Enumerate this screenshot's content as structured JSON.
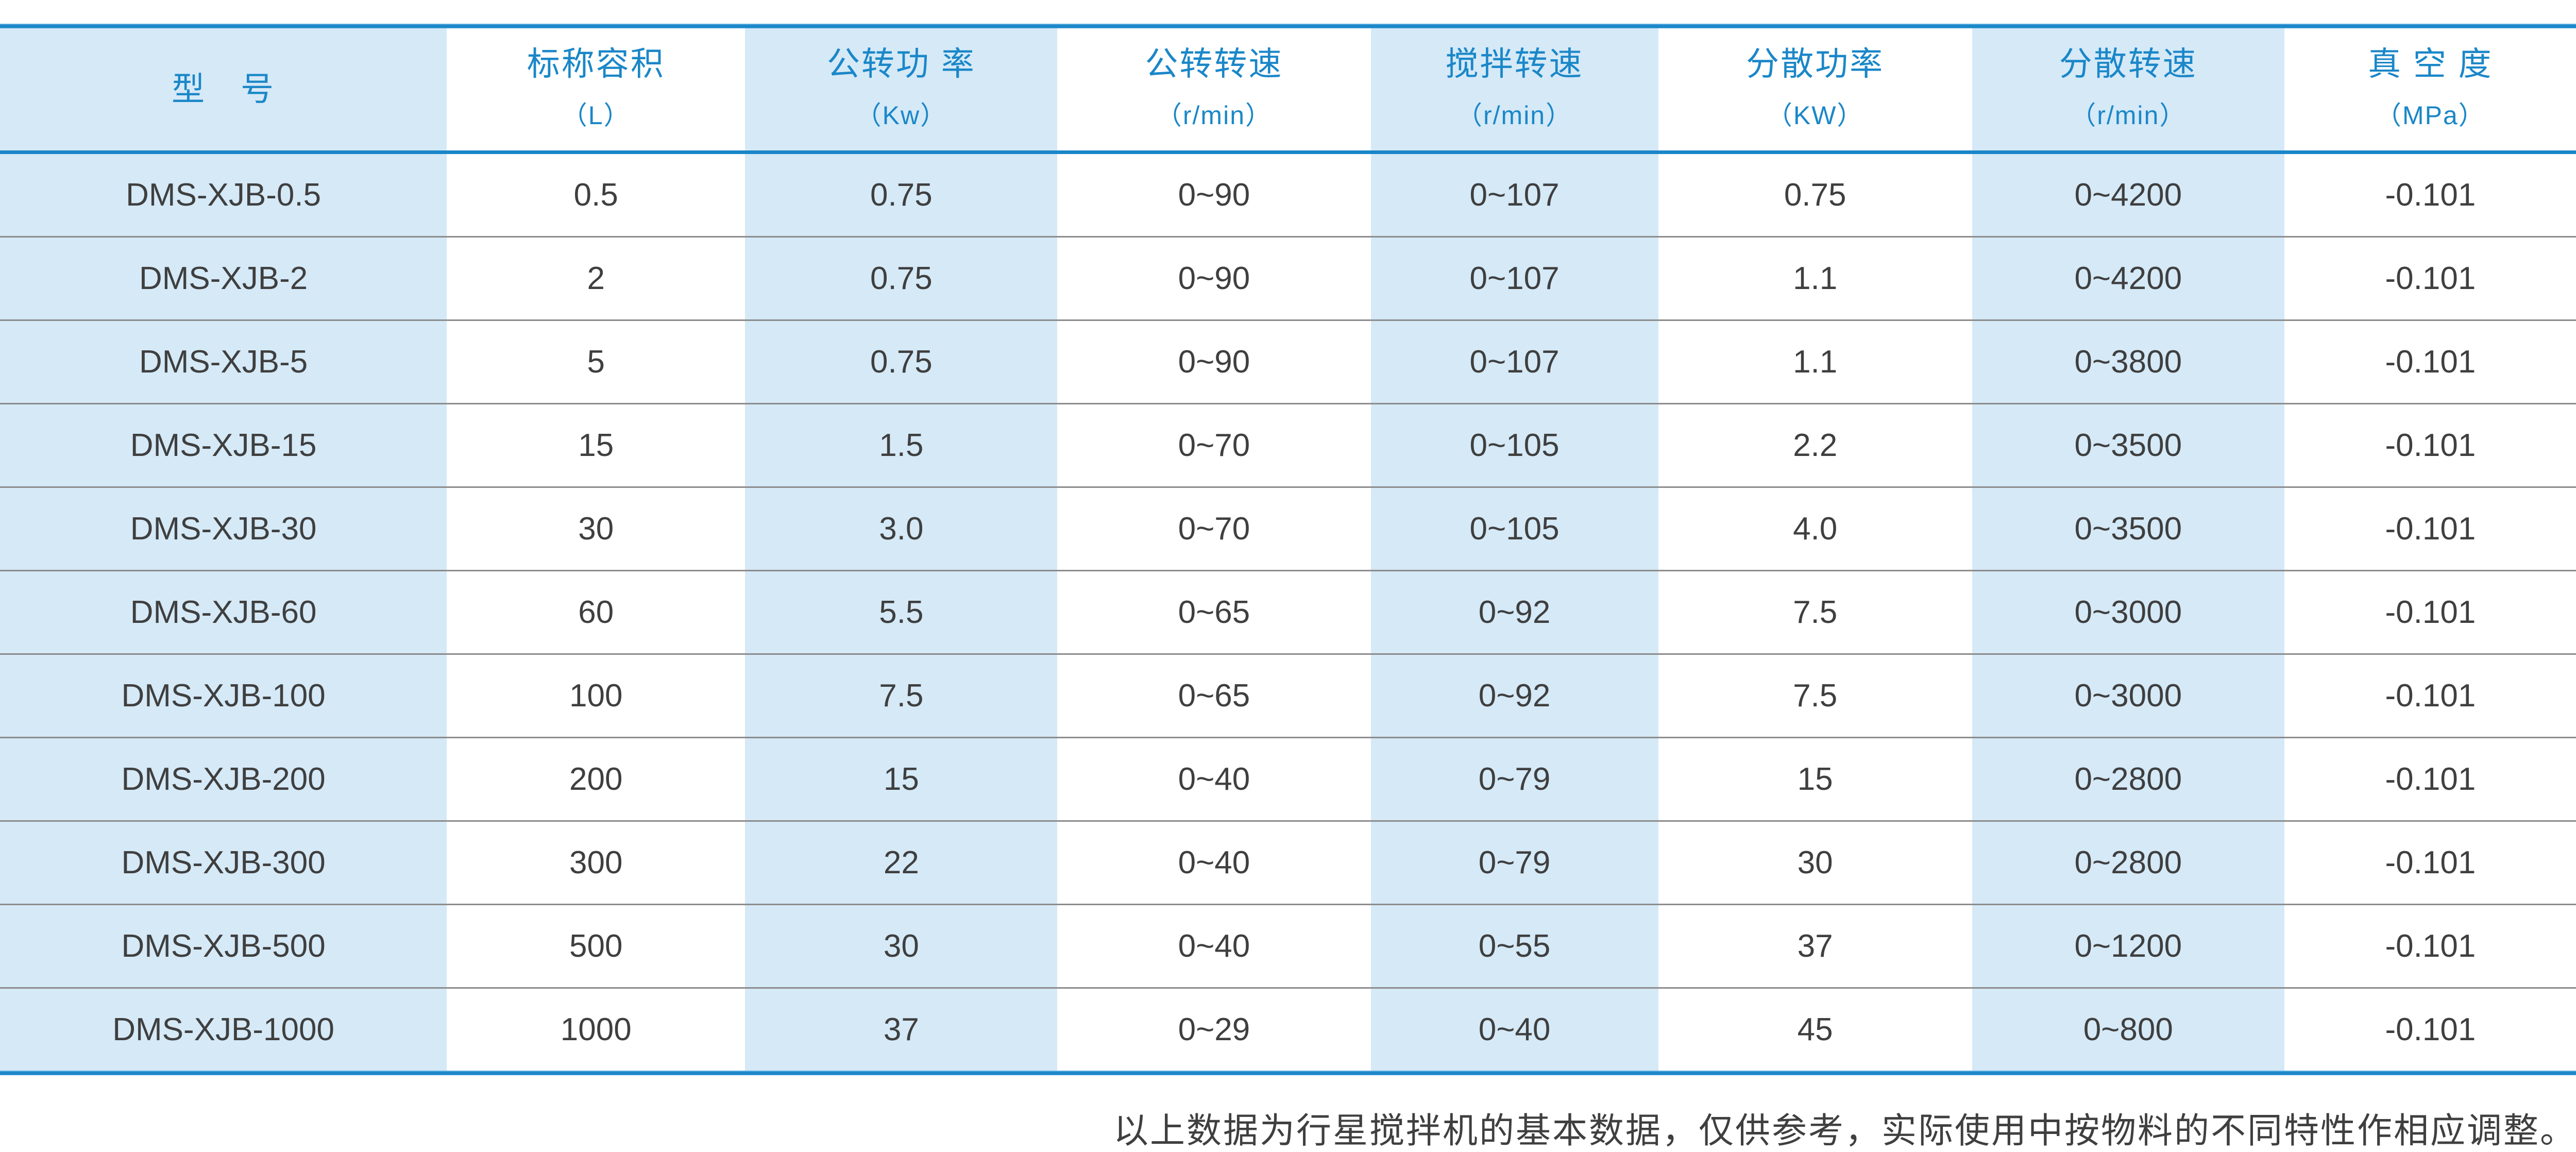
{
  "table": {
    "columns": [
      {
        "label": "型　号",
        "unit": ""
      },
      {
        "label": "标称容积",
        "unit": "（L）"
      },
      {
        "label": "公转功 率",
        "unit": "（Kw）"
      },
      {
        "label": "公转转速",
        "unit": "（r/min）"
      },
      {
        "label": "搅拌转速",
        "unit": "（r/min）"
      },
      {
        "label": "分散功率",
        "unit": "（KW）"
      },
      {
        "label": "分散转速",
        "unit": "（r/min）"
      },
      {
        "label": "真 空 度",
        "unit": "（MPa）"
      }
    ],
    "rows": [
      [
        "DMS-XJB-0.5",
        "0.5",
        "0.75",
        "0~90",
        "0~107",
        "0.75",
        "0~4200",
        "-0.101"
      ],
      [
        "DMS-XJB-2",
        "2",
        "0.75",
        "0~90",
        "0~107",
        "1.1",
        "0~4200",
        "-0.101"
      ],
      [
        "DMS-XJB-5",
        "5",
        "0.75",
        "0~90",
        "0~107",
        "1.1",
        "0~3800",
        "-0.101"
      ],
      [
        "DMS-XJB-15",
        "15",
        "1.5",
        "0~70",
        "0~105",
        "2.2",
        "0~3500",
        "-0.101"
      ],
      [
        "DMS-XJB-30",
        "30",
        "3.0",
        "0~70",
        "0~105",
        "4.0",
        "0~3500",
        "-0.101"
      ],
      [
        "DMS-XJB-60",
        "60",
        "5.5",
        "0~65",
        "0~92",
        "7.5",
        "0~3000",
        "-0.101"
      ],
      [
        "DMS-XJB-100",
        "100",
        "7.5",
        "0~65",
        "0~92",
        "7.5",
        "0~3000",
        "-0.101"
      ],
      [
        "DMS-XJB-200",
        "200",
        "15",
        "0~40",
        "0~79",
        "15",
        "0~2800",
        "-0.101"
      ],
      [
        "DMS-XJB-300",
        "300",
        "22",
        "0~40",
        "0~79",
        "30",
        "0~2800",
        "-0.101"
      ],
      [
        "DMS-XJB-500",
        "500",
        "30",
        "0~40",
        "0~55",
        "37",
        "0~1200",
        "-0.101"
      ],
      [
        "DMS-XJB-1000",
        "1000",
        "37",
        "0~29",
        "0~40",
        "45",
        "0~800",
        "-0.101"
      ]
    ]
  },
  "footer": {
    "note": "以上数据为行星搅拌机的基本数据，仅供参考，实际使用中按物料的不同特性作相应调整。"
  },
  "colors": {
    "accent_blue": "#1a86c8",
    "header_text_blue": "#1a87c8",
    "light_blue_cell": "#d5e9f7",
    "body_text": "#3f3f3f",
    "separator_gray": "#8c8c8c"
  }
}
